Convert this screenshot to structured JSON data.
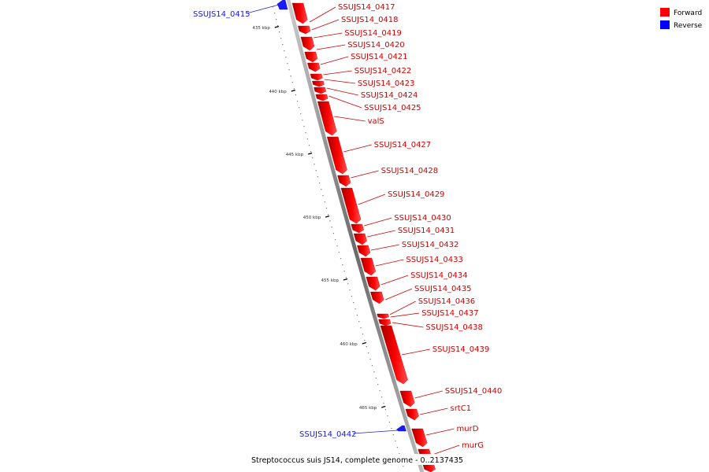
{
  "legend": {
    "forward_label": "Forward",
    "reverse_label": "Reverse",
    "forward_color": "#ff0000",
    "reverse_color": "#0000ff"
  },
  "caption": "Streptococcus suis JS14, complete genome - 0..2137435",
  "ruler": [
    "435 kbp",
    "440 kbp",
    "445 kbp",
    "450 kbp",
    "455 kbp",
    "460 kbp",
    "465 kbp"
  ],
  "forward_genes": [
    "SSUJS14_0417",
    "SSUJS14_0418",
    "SSUJS14_0419",
    "SSUJS14_0420",
    "SSUJS14_0421",
    "SSUJS14_0422",
    "SSUJS14_0423",
    "SSUJS14_0424",
    "SSUJS14_0425",
    "valS",
    "SSUJS14_0427",
    "SSUJS14_0428",
    "SSUJS14_0429",
    "SSUJS14_0430",
    "SSUJS14_0431",
    "SSUJS14_0432",
    "SSUJS14_0433",
    "SSUJS14_0434",
    "SSUJS14_0435",
    "SSUJS14_0436",
    "SSUJS14_0437",
    "SSUJS14_0438",
    "SSUJS14_0439",
    "SSUJS14_0440",
    "srtC1",
    "murD",
    "murG"
  ],
  "reverse_genes": [
    "SSUJS14_0415",
    "SSUJS14_0442"
  ]
}
